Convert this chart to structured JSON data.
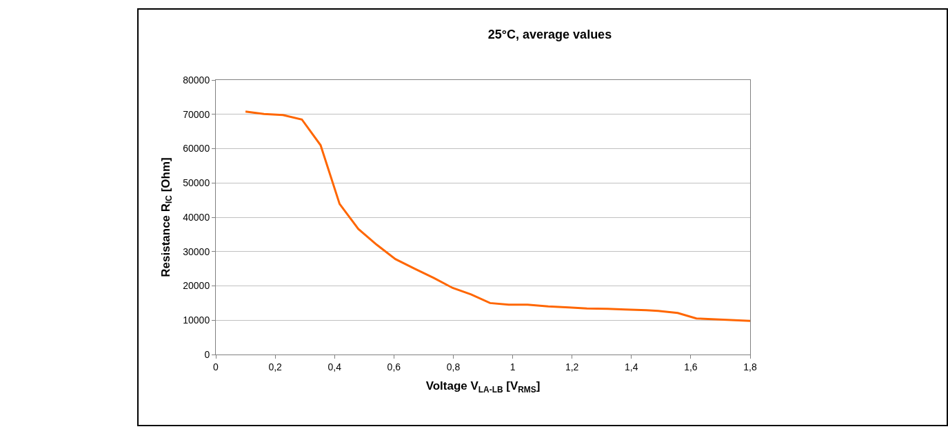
{
  "chart_data": {
    "type": "line",
    "title": "25°C, average values",
    "xlabel": "Voltage V$_{LA-LB}$ [V$_{RMS}$]",
    "ylabel": "Resistance R$_{IC}$ [Ohm]",
    "x": [
      0.1,
      0.162,
      0.226,
      0.29,
      0.353,
      0.417,
      0.48,
      0.542,
      0.605,
      0.67,
      0.735,
      0.798,
      0.86,
      0.924,
      0.987,
      1.05,
      1.12,
      1.19,
      1.25,
      1.32,
      1.38,
      1.45,
      1.49,
      1.556,
      1.619,
      1.8
    ],
    "series": [
      {
        "color": "#ff6600",
        "values": [
          70800,
          70100,
          69800,
          68500,
          61000,
          43900,
          36600,
          32000,
          27800,
          25000,
          22300,
          19400,
          17500,
          15000,
          14500,
          14500,
          14000,
          13700,
          13400,
          13300,
          13100,
          12900,
          12700,
          12100,
          10500,
          9800
        ]
      }
    ],
    "xlim": [
      0,
      1.8
    ],
    "xticks": [
      0,
      {
        "value": 0.2,
        "label": "0,2"
      },
      {
        "value": 0.4,
        "label": "0,4"
      },
      {
        "value": 0.6,
        "label": "0,6"
      },
      {
        "value": 0.8,
        "label": "0,8"
      },
      1,
      {
        "value": 1.2,
        "label": "1,2"
      },
      {
        "value": 1.4,
        "label": "1,4"
      },
      {
        "value": 1.6,
        "label": "1,6"
      },
      {
        "value": 1.8,
        "label": "1,8"
      }
    ],
    "ylim": [
      0,
      80000
    ],
    "yticks": [
      0,
      10000,
      20000,
      30000,
      40000,
      50000,
      60000,
      70000,
      80000
    ],
    "grid": "y",
    "marker": "none",
    "line_style": "solid"
  }
}
